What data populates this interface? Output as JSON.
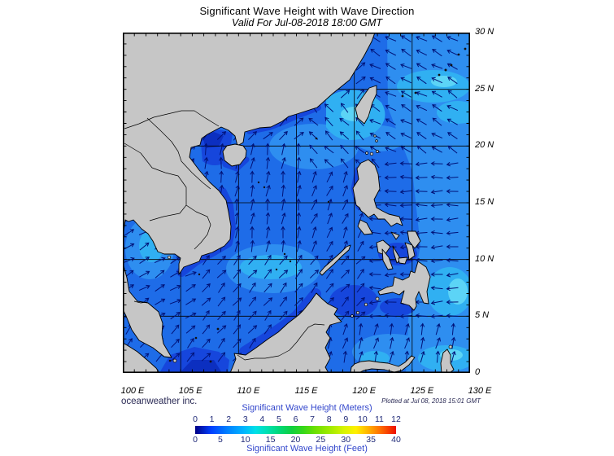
{
  "header": {
    "title": "Significant Wave Height with Wave Direction",
    "subtitle": "Valid For Jul-08-2018 18:00 GMT"
  },
  "map": {
    "lon_min": 100,
    "lon_max": 130,
    "lat_min": 0,
    "lat_max": 30,
    "grid_interval_deg": 5,
    "tick_interval_deg": 1,
    "lat_labels": [
      "30 N",
      "25 N",
      "20 N",
      "15 N",
      "10 N",
      "5 N",
      "0"
    ],
    "lon_labels": [
      "100 E",
      "105 E",
      "110 E",
      "115 E",
      "120 E",
      "125 E",
      "130 E"
    ]
  },
  "footer": {
    "credit": "oceanweather inc.",
    "plotted_at": "Plotted at Jul 08, 2018 15:01 GMT"
  },
  "colorbar": {
    "title_meters": "Significant Wave Height (Meters)",
    "title_feet": "Significant Wave Height (Feet)",
    "meters_ticks": [
      "0",
      "1",
      "2",
      "3",
      "4",
      "5",
      "6",
      "7",
      "8",
      "9",
      "10",
      "11",
      "12"
    ],
    "feet_ticks": [
      "0",
      "5",
      "10",
      "15",
      "20",
      "25",
      "30",
      "35",
      "40"
    ],
    "gradient_stops": [
      [
        "0%",
        "#000086"
      ],
      [
        "8%",
        "#0040ff"
      ],
      [
        "16%",
        "#0080ff"
      ],
      [
        "24%",
        "#00b4ff"
      ],
      [
        "30%",
        "#00e0e8"
      ],
      [
        "36%",
        "#00e0b0"
      ],
      [
        "42%",
        "#00d878"
      ],
      [
        "48%",
        "#10d040"
      ],
      [
        "54%",
        "#38d818"
      ],
      [
        "60%",
        "#70e000"
      ],
      [
        "68%",
        "#a8ec00"
      ],
      [
        "74%",
        "#d8f400"
      ],
      [
        "80%",
        "#fff000"
      ],
      [
        "86%",
        "#ffb400"
      ],
      [
        "92%",
        "#ff7000"
      ],
      [
        "100%",
        "#ee1000"
      ]
    ]
  },
  "palette": {
    "sea_base": "#1e6ce8",
    "sea_light1": "#2e8ef0",
    "sea_light2": "#30b0f2",
    "sea_light3": "#5cd4f6",
    "sea_dark1": "#1646dc",
    "sea_dark2": "#0c2fc0",
    "land": "#c6c6c6",
    "arrow": "#001278",
    "credit_text": "#2a2a55",
    "colorbar_label": "#3347cc",
    "colorbar_tick": "#202a78"
  },
  "chart_data": {
    "type": "map",
    "title": "Significant Wave Height with Wave Direction",
    "valid_time": "Jul-08-2018 18:00 GMT",
    "plotted_time": "Jul 08, 2018 15:01 GMT",
    "region": "South China Sea / Philippines / Western Pacific",
    "lon_range_deg_e": [
      100,
      130
    ],
    "lat_range_deg_n": [
      0,
      30
    ],
    "wave_height_scale_meters": [
      0,
      12
    ],
    "wave_height_scale_feet": [
      0,
      40
    ],
    "field_summary": "Wave heights roughly 1-3 m (blue to light blue-cyan); higher patches in central South China Sea, Taiwan Strait, east of Taiwan, east of Mindanao; lower (dark blue) along coasts, Gulf of Tonkin and Java Sea",
    "wave_direction_regions": [
      {
        "name": "pacific-northeast",
        "lon": [
          121,
          130.5
        ],
        "lat": [
          19.5,
          30.5
        ],
        "dir_deg": 300,
        "toward": "WNW"
      },
      {
        "name": "luzon-taiwan-strait",
        "lon": [
          116.5,
          122.5
        ],
        "lat": [
          18,
          24.5
        ],
        "dir_deg": 315,
        "toward": "NW"
      },
      {
        "name": "pacific-east-of-philippines",
        "lon": [
          121,
          130.5
        ],
        "lat": [
          4.5,
          19.5
        ],
        "dir_deg": 268,
        "toward": "W"
      },
      {
        "name": "celebes-molucca",
        "lon": [
          115,
          130.5
        ],
        "lat": [
          -0.5,
          4.5
        ],
        "dir_deg": 15,
        "toward": "NNE"
      },
      {
        "name": "northern-scs",
        "lon": [
          106.5,
          116.5
        ],
        "lat": [
          11,
          20
        ],
        "dir_deg": 8,
        "toward": "N"
      },
      {
        "name": "gulf-of-thailand",
        "lon": [
          99,
          106.5
        ],
        "lat": [
          4.5,
          14
        ],
        "dir_deg": 60,
        "toward": "ENE"
      },
      {
        "name": "west-of-luzon",
        "lon": [
          116.5,
          121
        ],
        "lat": [
          11,
          18
        ],
        "dir_deg": 25,
        "toward": "NNE"
      },
      {
        "name": "southern-central-scs",
        "lon": [
          99,
          121
        ],
        "lat": [
          -0.5,
          11
        ],
        "dir_deg": 40,
        "toward": "NE"
      }
    ]
  }
}
